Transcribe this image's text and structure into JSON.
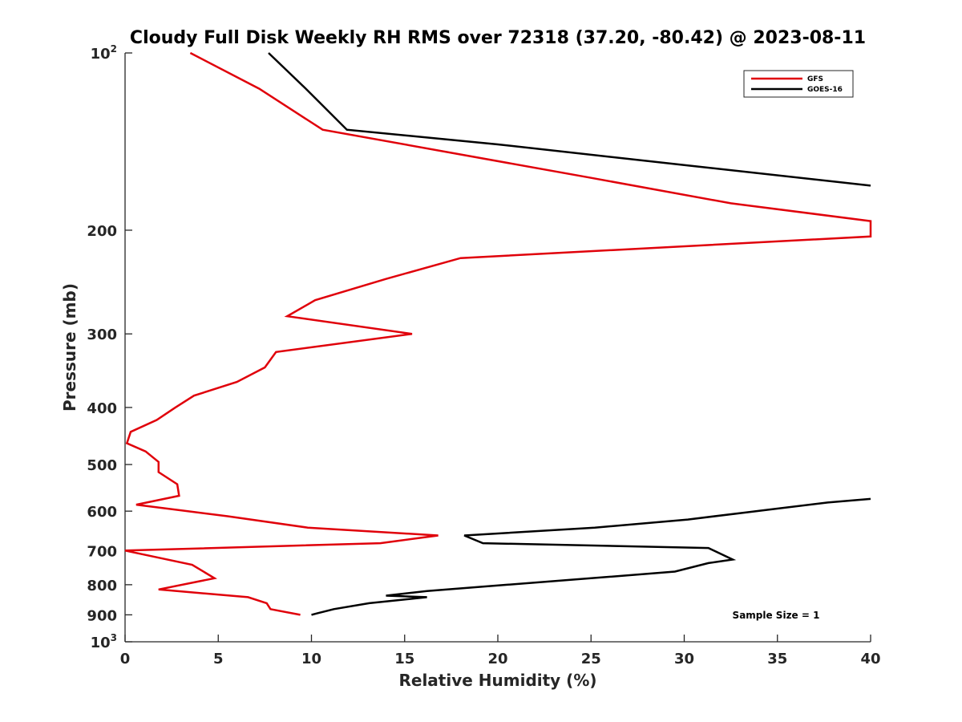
{
  "chart_data": {
    "type": "line",
    "title": "Cloudy Full Disk Weekly RH RMS over 72318 (37.20, -80.42) @ 2023-08-11",
    "xlabel": "Relative Humidity (%)",
    "ylabel": "Pressure (mb)",
    "xlim": [
      0,
      40
    ],
    "ylim": [
      100,
      1000
    ],
    "yscale": "log",
    "y_reversed": true,
    "grid": false,
    "x_ticks": [
      0,
      5,
      10,
      15,
      20,
      25,
      30,
      35,
      40
    ],
    "x_tick_labels": [
      "0",
      "5",
      "10",
      "15",
      "20",
      "25",
      "30",
      "35",
      "40"
    ],
    "y_ticks": [
      {
        "value": 100,
        "base": "10",
        "exp": "2"
      },
      {
        "value": 200,
        "label": "200"
      },
      {
        "value": 300,
        "label": "300"
      },
      {
        "value": 400,
        "label": "400"
      },
      {
        "value": 500,
        "label": "500"
      },
      {
        "value": 600,
        "label": "600"
      },
      {
        "value": 700,
        "label": "700"
      },
      {
        "value": 800,
        "label": "800"
      },
      {
        "value": 900,
        "label": "900"
      },
      {
        "value": 1000,
        "base": "10",
        "exp": "3"
      }
    ],
    "legend": {
      "position": "top-right",
      "entries": [
        "GFS",
        "GOES-16"
      ]
    },
    "annotation": "Sample Size = 1",
    "series": [
      {
        "name": "GFS",
        "color": "#e0000a",
        "points": [
          [
            3.5,
            100
          ],
          [
            7.2,
            115
          ],
          [
            10.6,
            135
          ],
          [
            25,
            163
          ],
          [
            32.5,
            180
          ],
          [
            40,
            193
          ],
          [
            40,
            205
          ],
          [
            18,
            223
          ],
          [
            14,
            242
          ],
          [
            10.2,
            263
          ],
          [
            8.7,
            280
          ],
          [
            15.4,
            300
          ],
          [
            8.1,
            322
          ],
          [
            7.5,
            342
          ],
          [
            6,
            362
          ],
          [
            3.7,
            382
          ],
          [
            2.7,
            400
          ],
          [
            1.7,
            420
          ],
          [
            0.3,
            440
          ],
          [
            0.1,
            460
          ],
          [
            1.1,
            475
          ],
          [
            1.8,
            495
          ],
          [
            1.8,
            515
          ],
          [
            2.8,
            540
          ],
          [
            2.9,
            565
          ],
          [
            0.6,
            585
          ],
          [
            5.5,
            612
          ],
          [
            9.8,
            640
          ],
          [
            16.8,
            660
          ],
          [
            13.7,
            680
          ],
          [
            0,
            700
          ],
          [
            3.6,
            740
          ],
          [
            4.8,
            780
          ],
          [
            1.8,
            815
          ],
          [
            6.6,
            840
          ],
          [
            7.6,
            860
          ],
          [
            7.8,
            880
          ],
          [
            9.4,
            900
          ]
        ]
      },
      {
        "name": "GOES-16",
        "color": "#000000",
        "segments": [
          [
            [
              7.7,
              100
            ],
            [
              9.7,
              115
            ],
            [
              11.9,
              135
            ],
            [
              20,
              143
            ],
            [
              30,
              155
            ],
            [
              40,
              168
            ]
          ],
          [
            [
              40,
              572
            ],
            [
              37.7,
              580
            ],
            [
              33.5,
              602
            ],
            [
              30.2,
              620
            ],
            [
              25.2,
              640
            ],
            [
              18.2,
              660
            ],
            [
              19.2,
              680
            ],
            [
              31.3,
              693
            ],
            [
              32.6,
              725
            ],
            [
              31.3,
              735
            ],
            [
              29.5,
              760
            ],
            [
              25,
              780
            ],
            [
              20.5,
              800
            ],
            [
              16.2,
              820
            ],
            [
              14,
              835
            ],
            [
              16.2,
              840
            ],
            [
              13.1,
              860
            ],
            [
              11.2,
              880
            ],
            [
              10.3,
              895
            ],
            [
              10,
              900
            ]
          ]
        ]
      }
    ]
  }
}
